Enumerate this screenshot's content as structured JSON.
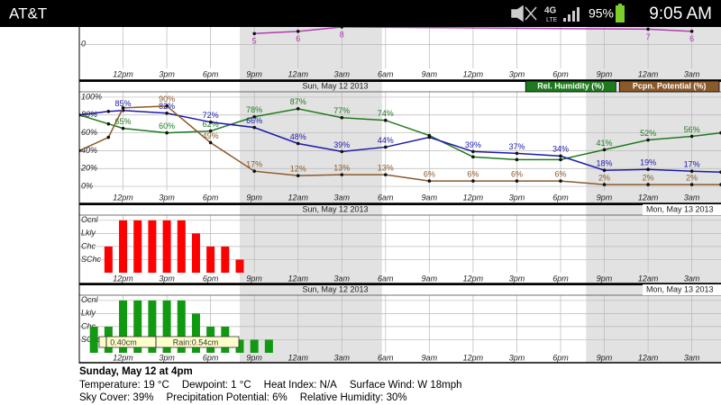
{
  "status_bar": {
    "carrier": "AT&T",
    "network": "4G",
    "network_sub": "LTE",
    "battery": "95%",
    "time": "9:05 AM"
  },
  "night_ranges": [
    [
      11,
      20.75
    ],
    [
      34.75,
      44
    ]
  ],
  "chart_data": [
    {
      "type": "line",
      "x": [
        12,
        15,
        18,
        39,
        42
      ],
      "series": [
        {
          "color": "#b03cb0",
          "values": [
            5,
            6,
            8,
            7,
            6
          ]
        }
      ],
      "xlim": [
        0,
        44
      ],
      "ylim": [
        -11,
        8
      ],
      "yticks": [
        0
      ],
      "grid": true,
      "xticks": [
        {
          "value": 3,
          "label": "12pm"
        },
        {
          "value": 6,
          "label": "3pm"
        },
        {
          "value": 9,
          "label": "6pm"
        },
        {
          "value": 12,
          "label": "9pm"
        },
        {
          "value": 15,
          "label": "12am"
        },
        {
          "value": 18,
          "label": "3am"
        },
        {
          "value": 21,
          "label": "6am"
        },
        {
          "value": 24,
          "label": "9am"
        },
        {
          "value": 27,
          "label": "12pm"
        },
        {
          "value": 30,
          "label": "3pm"
        },
        {
          "value": 33,
          "label": "6pm"
        },
        {
          "value": 36,
          "label": "9pm"
        },
        {
          "value": 39,
          "label": "12am"
        },
        {
          "value": 42,
          "label": "3am"
        }
      ]
    },
    {
      "type": "line",
      "date_labels": [
        "Sun, May 12 2013"
      ],
      "legend": "top-right",
      "grid": true,
      "x": [
        0,
        2,
        3,
        6,
        9,
        12,
        15,
        18,
        21,
        24,
        27,
        30,
        33,
        36,
        39,
        42,
        44
      ],
      "series": [
        {
          "name": "Rel. Humidity (%)",
          "color": "#1e7a1e",
          "values": [
            80,
            70,
            65,
            60,
            62,
            78,
            87,
            77,
            74,
            57,
            33,
            30,
            30,
            41,
            52,
            56,
            60
          ],
          "value_labels": [
            null,
            null,
            "65%",
            "60%",
            "62%",
            "78%",
            "87%",
            "77%",
            "74%",
            null,
            null,
            null,
            null,
            "41%",
            "52%",
            "56%",
            null
          ]
        },
        {
          "color": "#1a1aa8",
          "values": [
            80,
            84,
            85,
            82,
            72,
            66,
            48,
            39,
            44,
            55,
            39,
            37,
            34,
            18,
            19,
            17,
            16
          ],
          "value_labels": [
            null,
            null,
            "85%",
            "82%",
            "72%",
            "66%",
            "48%",
            "39%",
            "44%",
            null,
            "39%",
            "37%",
            "34%",
            "18%",
            "19%",
            "17%",
            null
          ]
        },
        {
          "name": "Pcpn. Potential (%)",
          "color": "#8b5a2b",
          "values": [
            40,
            55,
            88,
            90,
            49,
            17,
            12,
            13,
            13,
            6,
            6,
            6,
            6,
            2,
            2,
            2,
            2
          ],
          "value_labels": [
            null,
            null,
            null,
            "90%",
            "49%",
            "17%",
            "12%",
            "13%",
            "13%",
            "6%",
            "6%",
            "6%",
            "6%",
            "2%",
            "2%",
            "2%",
            null
          ]
        }
      ],
      "xlim": [
        0,
        44
      ],
      "ylim": [
        -5,
        106
      ],
      "yticks": [
        {
          "value": 0,
          "label": "0%"
        },
        {
          "value": 20,
          "label": "20%"
        },
        {
          "value": 40,
          "label": "40%"
        },
        {
          "value": 60,
          "label": "60%"
        },
        {
          "value": 80,
          "label": "80%"
        },
        {
          "value": 100,
          "label": "100%"
        }
      ],
      "xticks": [
        {
          "value": 3,
          "label": "12pm"
        },
        {
          "value": 6,
          "label": "3pm"
        },
        {
          "value": 9,
          "label": "6pm"
        },
        {
          "value": 12,
          "label": "9pm"
        },
        {
          "value": 15,
          "label": "12am"
        },
        {
          "value": 18,
          "label": "3am"
        },
        {
          "value": 21,
          "label": "6am"
        },
        {
          "value": 24,
          "label": "9am"
        },
        {
          "value": 27,
          "label": "12pm"
        },
        {
          "value": 30,
          "label": "3pm"
        },
        {
          "value": 33,
          "label": "6pm"
        },
        {
          "value": 36,
          "label": "9pm"
        },
        {
          "value": 39,
          "label": "12am"
        },
        {
          "value": 42,
          "label": "3am"
        }
      ]
    },
    {
      "type": "bar",
      "date_labels": [
        "Sun, May 12 2013",
        "Mon, May 13 2013"
      ],
      "grid": true,
      "x": [
        2,
        3,
        4,
        5,
        6,
        7,
        8,
        9,
        10,
        11
      ],
      "values": [
        2,
        4,
        4,
        4,
        4,
        4,
        3,
        2,
        2,
        1
      ],
      "color": "#ff0000",
      "xlim": [
        0,
        44
      ],
      "ylim": [
        0,
        4.4
      ],
      "yticks": [
        {
          "value": 1,
          "label": "SChc"
        },
        {
          "value": 2,
          "label": "Chc"
        },
        {
          "value": 3,
          "label": "Lkly"
        },
        {
          "value": 4,
          "label": "Ocnl"
        }
      ],
      "xticks": [
        {
          "value": 3,
          "label": "12pm"
        },
        {
          "value": 6,
          "label": "3pm"
        },
        {
          "value": 9,
          "label": "6pm"
        },
        {
          "value": 12,
          "label": "9pm"
        },
        {
          "value": 15,
          "label": "12am"
        },
        {
          "value": 18,
          "label": "3am"
        },
        {
          "value": 21,
          "label": "6am"
        },
        {
          "value": 24,
          "label": "9am"
        },
        {
          "value": 27,
          "label": "12pm"
        },
        {
          "value": 30,
          "label": "3pm"
        },
        {
          "value": 33,
          "label": "6pm"
        },
        {
          "value": 36,
          "label": "9pm"
        },
        {
          "value": 39,
          "label": "12am"
        },
        {
          "value": 42,
          "label": "3am"
        }
      ]
    },
    {
      "type": "bar",
      "date_labels": [
        "Sun, May 12 2013",
        "Mon, May 13 2013"
      ],
      "grid": true,
      "x": [
        1,
        2,
        3,
        4,
        5,
        6,
        7,
        8,
        9,
        10,
        11,
        12,
        13
      ],
      "values": [
        2,
        2,
        4,
        4,
        4,
        4,
        4,
        3,
        2,
        2,
        1,
        1,
        1
      ],
      "color": "#119911",
      "annotations": [
        "0.40cm",
        "Rain:0.54cm"
      ],
      "xlim": [
        0,
        44
      ],
      "ylim": [
        0,
        4.4
      ],
      "yticks": [
        {
          "value": 1,
          "label": "SChc"
        },
        {
          "value": 2,
          "label": "Chc"
        },
        {
          "value": 3,
          "label": "Lkly"
        },
        {
          "value": 4,
          "label": "Ocnl"
        }
      ],
      "xticks": [
        {
          "value": 3,
          "label": "12pm"
        },
        {
          "value": 6,
          "label": "3pm"
        },
        {
          "value": 9,
          "label": "6pm"
        },
        {
          "value": 12,
          "label": "9pm"
        },
        {
          "value": 15,
          "label": "12am"
        },
        {
          "value": 18,
          "label": "3am"
        },
        {
          "value": 21,
          "label": "6am"
        },
        {
          "value": 24,
          "label": "9am"
        },
        {
          "value": 27,
          "label": "12pm"
        },
        {
          "value": 30,
          "label": "3pm"
        },
        {
          "value": 33,
          "label": "6pm"
        },
        {
          "value": 36,
          "label": "9pm"
        },
        {
          "value": 39,
          "label": "12am"
        },
        {
          "value": 42,
          "label": "3am"
        }
      ]
    }
  ],
  "info": {
    "title": "Sunday, May 12 at 4pm",
    "rows": [
      [
        "Temperature:  19 °C",
        "Dewpoint: 1 °C",
        "Heat Index: N/A",
        "Surface Wind: W 18mph"
      ],
      [
        "Sky Cover: 39%",
        "Precipitation Potential: 6%",
        "Relative Humidity: 30%"
      ]
    ]
  }
}
